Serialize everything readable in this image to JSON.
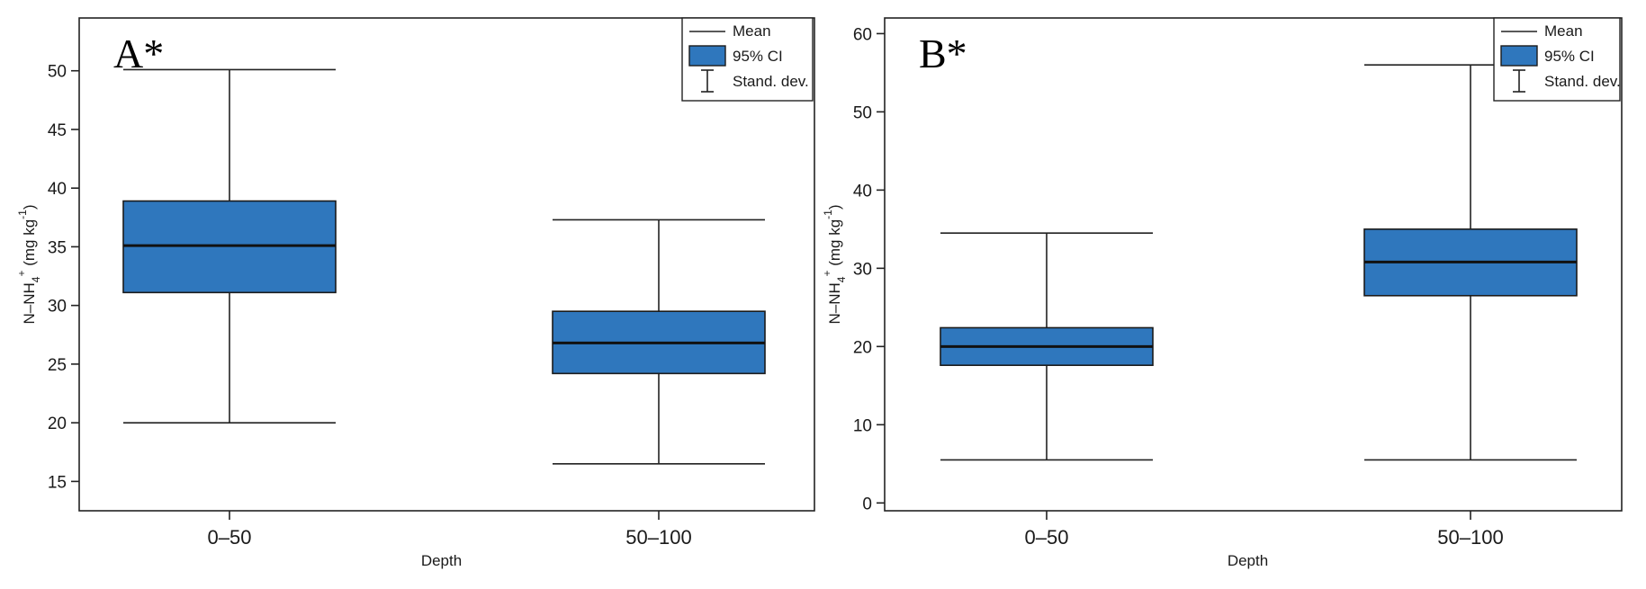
{
  "chart_data": [
    {
      "type": "box",
      "panel_label": "A*",
      "xlabel": "Depth",
      "ylabel_parts": {
        "main": "N–NH",
        "sub": "4",
        "sup": "+",
        "unit_open": " (mg kg",
        "unit_sup": "-1",
        "unit_close": ")"
      },
      "ylim": [
        12.5,
        54.5
      ],
      "yticks": [
        15,
        20,
        25,
        30,
        35,
        40,
        45,
        50
      ],
      "categories": [
        "0–50",
        "50–100"
      ],
      "series": [
        {
          "category": "0–50",
          "mean": 35.1,
          "ci_low": 31.1,
          "ci_high": 38.9,
          "sd_low": 20.0,
          "sd_high": 50.1
        },
        {
          "category": "50–100",
          "mean": 26.8,
          "ci_low": 24.2,
          "ci_high": 29.5,
          "sd_low": 16.5,
          "sd_high": 37.3
        }
      ],
      "legend": {
        "mean": "Mean",
        "ci": "95% CI",
        "sd": "Stand. dev."
      },
      "fill_color": "#2f77bd"
    },
    {
      "type": "box",
      "panel_label": "B*",
      "xlabel": "Depth",
      "ylabel_parts": {
        "main": "N–NH",
        "sub": "4",
        "sup": "+",
        "unit_open": " (mg kg",
        "unit_sup": "-1",
        "unit_close": ")"
      },
      "ylim": [
        -1,
        62
      ],
      "yticks": [
        0,
        10,
        20,
        30,
        40,
        50,
        60
      ],
      "categories": [
        "0–50",
        "50–100"
      ],
      "series": [
        {
          "category": "0–50",
          "mean": 20.0,
          "ci_low": 17.6,
          "ci_high": 22.4,
          "sd_low": 5.5,
          "sd_high": 34.5
        },
        {
          "category": "50–100",
          "mean": 30.8,
          "ci_low": 26.5,
          "ci_high": 35.0,
          "sd_low": 5.5,
          "sd_high": 56.0
        }
      ],
      "legend": {
        "mean": "Mean",
        "ci": "95% CI",
        "sd": "Stand. dev."
      },
      "fill_color": "#2f77bd"
    }
  ]
}
